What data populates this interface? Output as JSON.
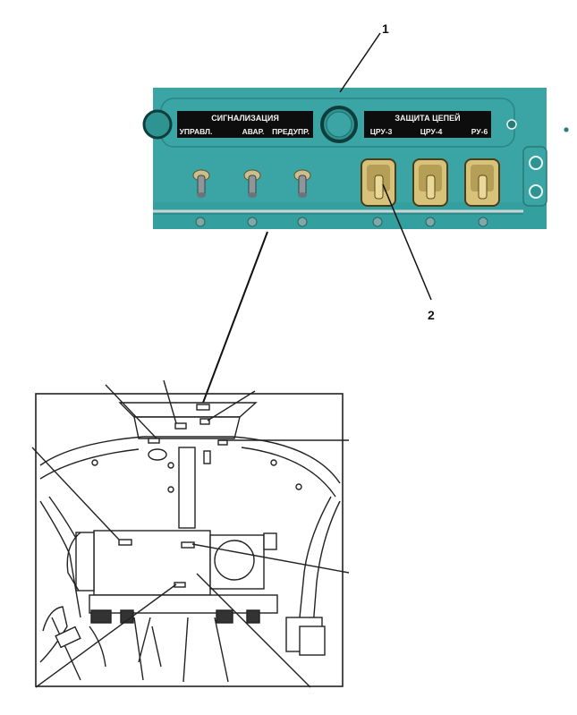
{
  "callouts": {
    "one": "1",
    "two": "2"
  },
  "panel": {
    "signal_group": {
      "title": "СИГНАЛИЗАЦИЯ",
      "labels": [
        "УПРАВЛ.",
        "АВАР.",
        "ПРЕДУПР."
      ]
    },
    "protection_group": {
      "title": "ЗАЩИТА ЦЕПЕЙ",
      "labels": [
        "ЦРУ-3",
        "ЦРУ-4",
        "РУ-6"
      ]
    }
  },
  "colors": {
    "panel": "#3aa5a4",
    "panel_dark": "#1f6e6c",
    "label_plate": "#0d0d0d",
    "switch_guard": "#d8c279",
    "line_art": "#222222"
  }
}
